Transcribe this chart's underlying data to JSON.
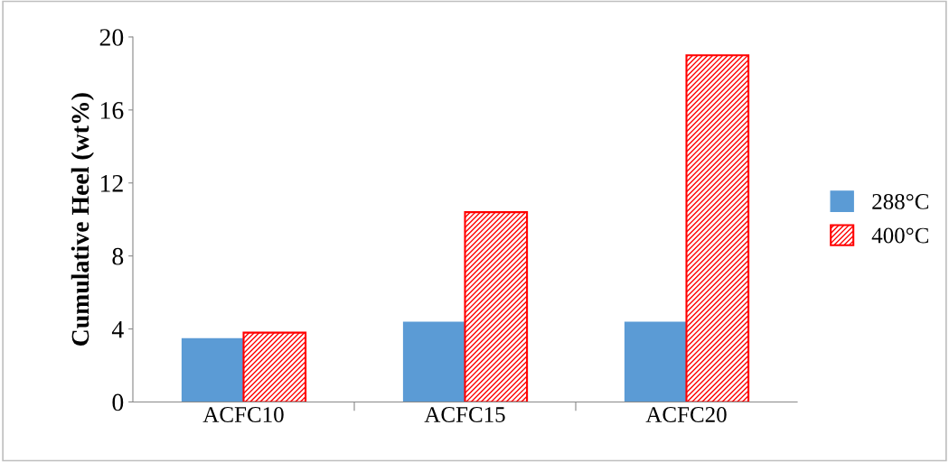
{
  "chart_data": {
    "type": "bar",
    "ylabel": "Cumulative Heel (wt%)",
    "categories": [
      "ACFC10",
      "ACFC15",
      "ACFC20"
    ],
    "series": [
      {
        "name": "288°C",
        "color": "#5b9bd5",
        "values": [
          3.5,
          4.4,
          4.4
        ]
      },
      {
        "name": "400°C",
        "color": "#ff0000",
        "values": [
          3.8,
          10.4,
          19.0
        ]
      }
    ],
    "ylim": [
      0,
      20
    ],
    "yticks": [
      0,
      4,
      8,
      12,
      16,
      20
    ],
    "grid": false,
    "legend": "right"
  }
}
